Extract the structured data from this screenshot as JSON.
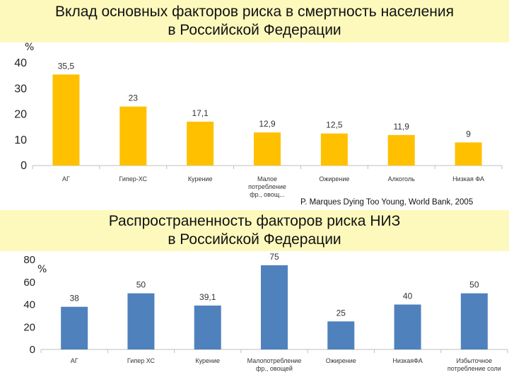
{
  "chart_data": [
    {
      "type": "bar",
      "title_lines": [
        "Вклад основных факторов риска в смертность населения",
        "в Российской Федерации"
      ],
      "unit": "%",
      "categories": [
        [
          "АГ"
        ],
        [
          "Гипер-ХС"
        ],
        [
          "Курение"
        ],
        [
          "Малое",
          "потребление",
          "фр., овощ..."
        ],
        [
          "Ожирение"
        ],
        [
          "Алкоголь"
        ],
        [
          "Низкая ФА"
        ]
      ],
      "values": [
        35.5,
        23,
        17.1,
        12.9,
        12.5,
        11.9,
        9
      ],
      "data_labels": [
        "35,5",
        "23",
        "17,1",
        "12,9",
        "12,5",
        "11,9",
        "9"
      ],
      "ylim": [
        0,
        40
      ],
      "yticks": [
        "0",
        "10",
        "20",
        "30",
        "40"
      ],
      "grid": false,
      "bar_color": "#ffc000",
      "source": "P. Marques Dying Too Young, World Bank,  2005"
    },
    {
      "type": "bar",
      "title_lines": [
        "Распространенность факторов риска НИЗ",
        "в Российской Федерации"
      ],
      "unit": "%",
      "categories": [
        [
          "АГ"
        ],
        [
          "Гипер ХС"
        ],
        [
          "Курение"
        ],
        [
          "Малопотребление",
          "фр., овощей"
        ],
        [
          "Ожирение"
        ],
        [
          "НизкаяФА"
        ],
        [
          "Избыточное",
          "потребление соли"
        ]
      ],
      "values": [
        38,
        50,
        39.1,
        75,
        25,
        40,
        50
      ],
      "data_labels": [
        "38",
        "50",
        "39,1",
        "75",
        "25",
        "40",
        "50"
      ],
      "ylim": [
        0,
        80
      ],
      "yticks": [
        "0",
        "20",
        "40",
        "60",
        "80"
      ],
      "grid": false,
      "bar_color": "#4f81bd"
    }
  ]
}
